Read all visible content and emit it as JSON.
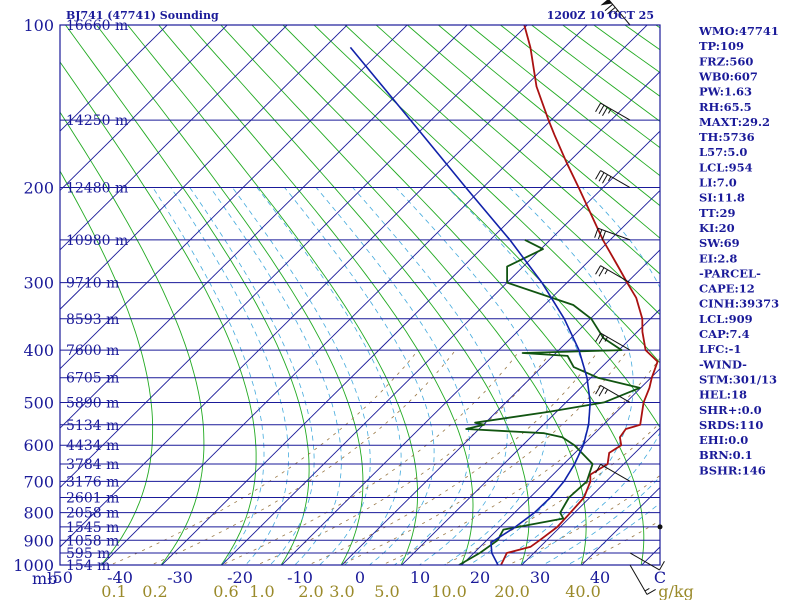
{
  "header": {
    "title": "BJ741 (47741) Sounding",
    "time": "1200Z 10 OCT 25"
  },
  "footer": {
    "mb_label": "mb",
    "mix_unit": "g/kg"
  },
  "indices": [
    "WMO:47741",
    "TP:109",
    "FRZ:560",
    "WB0:607",
    "PW:1.63",
    "RH:65.5",
    "MAXT:29.2",
    "TH:5736",
    "L57:5.0",
    "LCL:954",
    "LI:7.0",
    "SI:11.8",
    "TT:29",
    "KI:20",
    "SW:69",
    "EI:2.8",
    "-PARCEL-",
    "CAPE:12",
    "CINH:39373",
    "LCL:909",
    "CAP:7.4",
    "LFC:-1",
    "-WIND-",
    "STM:301/13",
    "HEL:18",
    "SHR+:0.0",
    "SRDS:110",
    "EHI:0.0",
    "BRN:0.1",
    "BSHR:146"
  ],
  "colors": {
    "isobar": "#1a1a99",
    "isotherm": "#1a1a99",
    "dry_adiabat": "#22aa22",
    "moist_adiabat": "#44aadd",
    "mixing_ratio": "#997744",
    "temperature": "#aa1111",
    "dewpoint": "#115511",
    "parcel": "#1122aa",
    "frame": "#1a1a99"
  },
  "chart_data": {
    "type": "line",
    "title": "BJ741 (47741) Sounding",
    "subtitle": "1200Z 10 OCT 25",
    "xlabel": "",
    "ylabel": "mb",
    "pressure_scale": "log",
    "xlim": [
      -50,
      50
    ],
    "ylim": [
      1000,
      100
    ],
    "pressure_ticks": [
      {
        "p": 100,
        "label": "100"
      },
      {
        "p": 200,
        "label": "200"
      },
      {
        "p": 300,
        "label": "300"
      },
      {
        "p": 400,
        "label": "400"
      },
      {
        "p": 500,
        "label": "500"
      },
      {
        "p": 600,
        "label": "600"
      },
      {
        "p": 700,
        "label": "700"
      },
      {
        "p": 800,
        "label": "800"
      },
      {
        "p": 900,
        "label": "900"
      },
      {
        "p": 1000,
        "label": "1000"
      }
    ],
    "height_labels": [
      {
        "p": 100,
        "label": "16660 m"
      },
      {
        "p": 150,
        "label": "14250 m"
      },
      {
        "p": 200,
        "label": "12480 m"
      },
      {
        "p": 250,
        "label": "10980 m"
      },
      {
        "p": 300,
        "label": "9710 m"
      },
      {
        "p": 350,
        "label": "8593 m"
      },
      {
        "p": 400,
        "label": "7600 m"
      },
      {
        "p": 450,
        "label": "6705 m"
      },
      {
        "p": 500,
        "label": "5890 m"
      },
      {
        "p": 550,
        "label": "5134 m"
      },
      {
        "p": 600,
        "label": "4434 m"
      },
      {
        "p": 650,
        "label": "3784 m"
      },
      {
        "p": 700,
        "label": "3176 m"
      },
      {
        "p": 750,
        "label": "2601 m"
      },
      {
        "p": 800,
        "label": "2058 m"
      },
      {
        "p": 850,
        "label": "1545 m"
      },
      {
        "p": 900,
        "label": "1058 m"
      },
      {
        "p": 950,
        "label": "595 m"
      },
      {
        "p": 1000,
        "label": "154 m"
      }
    ],
    "temperature_ticks": [
      {
        "t": -50,
        "label": "-50"
      },
      {
        "t": -40,
        "label": "-40"
      },
      {
        "t": -30,
        "label": "-30"
      },
      {
        "t": -20,
        "label": "-20"
      },
      {
        "t": -10,
        "label": "-10"
      },
      {
        "t": 0,
        "label": "0"
      },
      {
        "t": 10,
        "label": "10"
      },
      {
        "t": 20,
        "label": "20"
      },
      {
        "t": 30,
        "label": "30"
      },
      {
        "t": 40,
        "label": "40"
      },
      {
        "t": 50,
        "label": "C"
      }
    ],
    "mixing_ratio_ticks": [
      {
        "w": 0.1,
        "label": "0.1"
      },
      {
        "w": 0.2,
        "label": "0.2"
      },
      {
        "w": 0.6,
        "label": "0.6"
      },
      {
        "w": 1.0,
        "label": "1.0"
      },
      {
        "w": 2.0,
        "label": "2.0"
      },
      {
        "w": 3.0,
        "label": "3.0"
      },
      {
        "w": 5.0,
        "label": "5.0"
      },
      {
        "w": 10.0,
        "label": "10.0"
      },
      {
        "w": 20.0,
        "label": "20.0"
      },
      {
        "w": 40.0,
        "label": "40.0"
      }
    ],
    "series": [
      {
        "key": "temperature",
        "points": [
          [
            1000,
            23.5
          ],
          [
            975,
            21.5
          ],
          [
            950,
            19.5
          ],
          [
            925,
            21.0
          ],
          [
            900,
            20.0
          ],
          [
            850,
            18.0
          ],
          [
            800,
            15.2
          ],
          [
            750,
            12.5
          ],
          [
            700,
            8.6
          ],
          [
            680,
            6.6
          ],
          [
            650,
            6.5
          ],
          [
            620,
            3.8
          ],
          [
            600,
            3.8
          ],
          [
            580,
            1.6
          ],
          [
            560,
            0.6
          ],
          [
            550,
            2.0
          ],
          [
            500,
            -2.4
          ],
          [
            470,
            -4.4
          ],
          [
            450,
            -6.0
          ],
          [
            420,
            -8.0
          ],
          [
            400,
            -12.0
          ],
          [
            370,
            -15.5
          ],
          [
            350,
            -17.5
          ],
          [
            320,
            -21.5
          ],
          [
            300,
            -25.0
          ],
          [
            280,
            -28.5
          ],
          [
            250,
            -34.0
          ],
          [
            200,
            -43.0
          ],
          [
            180,
            -47.0
          ],
          [
            160,
            -51.0
          ],
          [
            150,
            -53.0
          ],
          [
            130,
            -57.0
          ],
          [
            110,
            -60.0
          ],
          [
            100,
            -62.0
          ]
        ]
      },
      {
        "key": "dewpoint",
        "points": [
          [
            1000,
            16.5
          ],
          [
            950,
            15.0
          ],
          [
            900,
            13.0
          ],
          [
            860,
            10.0
          ],
          [
            850,
            11.5
          ],
          [
            820,
            16.0
          ],
          [
            800,
            13.5
          ],
          [
            750,
            10.0
          ],
          [
            700,
            8.0
          ],
          [
            650,
            4.0
          ],
          [
            600,
            -4.0
          ],
          [
            580,
            -8.0
          ],
          [
            570,
            -12.0
          ],
          [
            560,
            -26.0
          ],
          [
            550,
            -24.0
          ],
          [
            545,
            -26.0
          ],
          [
            520,
            -16.0
          ],
          [
            500,
            -9.0
          ],
          [
            470,
            -6.0
          ],
          [
            450,
            -15.0
          ],
          [
            430,
            -21.0
          ],
          [
            410,
            -24.0
          ],
          [
            405,
            -32.0
          ],
          [
            400,
            -16.0
          ],
          [
            380,
            -21.0
          ],
          [
            350,
            -26.0
          ],
          [
            330,
            -31.0
          ],
          [
            300,
            -45.0
          ],
          [
            280,
            -47.0
          ],
          [
            260,
            -43.0
          ],
          [
            250,
            -47.0
          ]
        ]
      },
      {
        "key": "parcel",
        "points": [
          [
            1000,
            23.0
          ],
          [
            950,
            17.0
          ],
          [
            909,
            12.8
          ],
          [
            850,
            11.0
          ],
          [
            800,
            9.2
          ],
          [
            750,
            6.9
          ],
          [
            700,
            4.2
          ],
          [
            650,
            1.0
          ],
          [
            600,
            -2.5
          ],
          [
            550,
            -6.6
          ],
          [
            500,
            -11.3
          ],
          [
            450,
            -16.8
          ],
          [
            400,
            -23.1
          ],
          [
            350,
            -30.5
          ],
          [
            300,
            -39.2
          ],
          [
            250,
            -49.5
          ],
          [
            200,
            -61.8
          ],
          [
            150,
            -76.0
          ],
          [
            110,
            -90.0
          ]
        ]
      }
    ],
    "wind_barbs": [
      {
        "p": 100,
        "dir": 320,
        "spd": 75
      },
      {
        "p": 150,
        "dir": 300,
        "spd": 35
      },
      {
        "p": 200,
        "dir": 300,
        "spd": 35
      },
      {
        "p": 250,
        "dir": 290,
        "spd": 30
      },
      {
        "p": 300,
        "dir": 300,
        "spd": 25
      },
      {
        "p": 400,
        "dir": 300,
        "spd": 25
      },
      {
        "p": 500,
        "dir": 300,
        "spd": 25
      },
      {
        "p": 700,
        "dir": 300,
        "spd": 10
      },
      {
        "p": 850,
        "dir": 0,
        "spd": 0
      },
      {
        "p": 950,
        "dir": 120,
        "spd": 10
      },
      {
        "p": 1000,
        "dir": 150,
        "spd": 15
      }
    ]
  }
}
